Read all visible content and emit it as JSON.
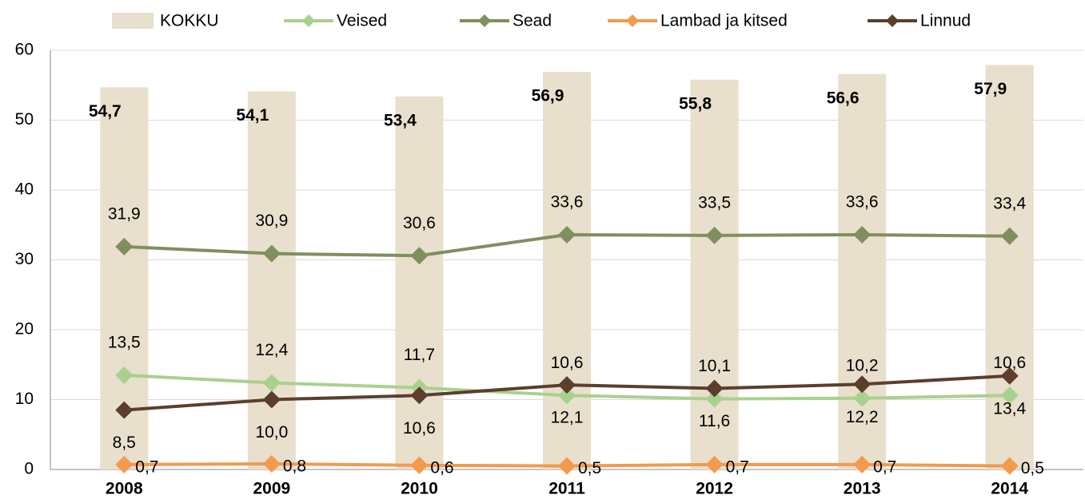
{
  "chart_data": {
    "type": "combo",
    "categories": [
      "2008",
      "2009",
      "2010",
      "2011",
      "2012",
      "2013",
      "2014"
    ],
    "series": [
      {
        "name": "KOKKU",
        "type": "bar",
        "color": "#e8dfcc",
        "values": [
          54.7,
          54.1,
          53.4,
          56.9,
          55.8,
          56.6,
          57.9
        ],
        "value_labels": [
          "54,7",
          "54,1",
          "53,4",
          "56,9",
          "55,8",
          "56,6",
          "57,9"
        ]
      },
      {
        "name": "Veised",
        "type": "line",
        "color": "#a9d18e",
        "values": [
          13.5,
          12.4,
          11.7,
          10.6,
          10.1,
          10.2,
          10.6
        ],
        "value_labels": [
          "13,5",
          "12,4",
          "11,7",
          "10,6",
          "10,1",
          "10,2",
          "10,6"
        ]
      },
      {
        "name": "Sead",
        "type": "line",
        "color": "#7f8f5e",
        "values": [
          31.9,
          30.9,
          30.6,
          33.6,
          33.5,
          33.6,
          33.4
        ],
        "value_labels": [
          "31,9",
          "30,9",
          "30,6",
          "33,6",
          "33,5",
          "33,6",
          "33,4"
        ]
      },
      {
        "name": "Lambad ja kitsed",
        "type": "line",
        "color": "#f39a4c",
        "values": [
          0.7,
          0.8,
          0.6,
          0.5,
          0.7,
          0.7,
          0.5
        ],
        "value_labels": [
          "0,7",
          "0,8",
          "0,6",
          "0,5",
          "0,7",
          "0,7",
          "0,5"
        ]
      },
      {
        "name": "Linnud",
        "type": "line",
        "color": "#5b3e2c",
        "values": [
          8.5,
          10.0,
          10.6,
          12.1,
          11.6,
          12.2,
          13.4
        ],
        "value_labels": [
          "8,5",
          "10,0",
          "10,6",
          "12,1",
          "11,6",
          "12,2",
          "13,4"
        ]
      }
    ],
    "ylim": [
      0,
      60
    ],
    "yticks": [
      0,
      10,
      20,
      30,
      40,
      50,
      60
    ],
    "grid": true
  }
}
